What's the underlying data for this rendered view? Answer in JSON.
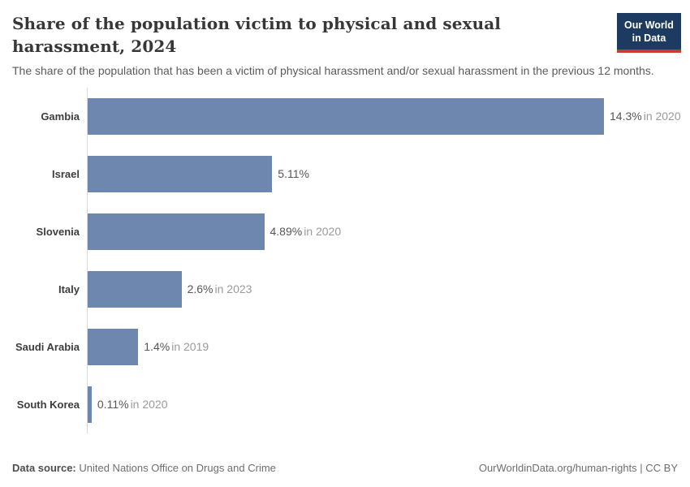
{
  "header": {
    "title": "Share of the population victim to physical and sexual harassment, 2024",
    "subtitle": "The share of the population that has been a victim of physical harassment and/or sexual harassment in the previous 12 months.",
    "logo": {
      "line1": "Our World",
      "line2": "in Data"
    }
  },
  "chart_data": {
    "type": "bar",
    "orientation": "horizontal",
    "title": "Share of the population victim to physical and sexual harassment, 2024",
    "categories": [
      "Gambia",
      "Israel",
      "Slovenia",
      "Italy",
      "Saudi Arabia",
      "South Korea"
    ],
    "values": [
      14.3,
      5.11,
      4.89,
      2.6,
      1.4,
      0.11
    ],
    "value_labels": [
      "14.3%",
      "5.11%",
      "4.89%",
      "2.6%",
      "1.4%",
      "0.11%"
    ],
    "year_labels": [
      "in 2020",
      "",
      "in 2020",
      "in 2023",
      "in 2019",
      "in 2020"
    ],
    "unit": "%",
    "xlim": [
      0,
      14.3
    ],
    "grid": false,
    "legend": "none",
    "bar_color": "#6e87af",
    "axis_line_color": "#d9d9d9"
  },
  "footer": {
    "datasource_label": "Data source:",
    "datasource_value": " United Nations Office on Drugs and Crime",
    "credit": "OurWorldinData.org/human-rights | CC BY"
  }
}
